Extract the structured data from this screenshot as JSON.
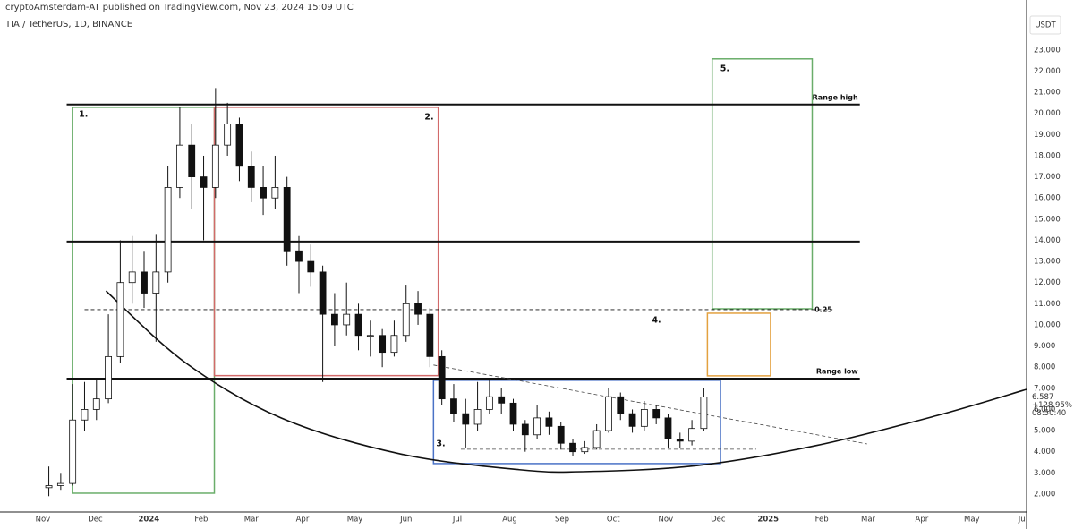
{
  "chart_data": {
    "type": "candlestick",
    "published": "cryptoAmsterdam-AT published on TradingView.com, Nov 23, 2024 15:09 UTC",
    "symbol": "TIA / TetherUS, 1D, BINANCE",
    "currency": "USDT",
    "price_label": "6.587",
    "change_label": "+128.95%",
    "countdown": "08:50:40",
    "color_up": "#ffffff",
    "color_down": "#111111",
    "xlim": [
      -3.6,
      82.6
    ],
    "xticks": [
      {
        "value": 0,
        "label": "Nov"
      },
      {
        "value": 4.4,
        "label": "Dec"
      },
      {
        "value": 8.9,
        "label": "2024"
      },
      {
        "value": 13.3,
        "label": "Feb"
      },
      {
        "value": 17.5,
        "label": "Mar"
      },
      {
        "value": 21.8,
        "label": "Apr"
      },
      {
        "value": 26.2,
        "label": "May"
      },
      {
        "value": 30.5,
        "label": "Jun"
      },
      {
        "value": 34.8,
        "label": "Jul"
      },
      {
        "value": 39.2,
        "label": "Aug"
      },
      {
        "value": 43.6,
        "label": "Sep"
      },
      {
        "value": 47.9,
        "label": "Oct"
      },
      {
        "value": 52.3,
        "label": "Nov"
      },
      {
        "value": 56.7,
        "label": "Dec"
      },
      {
        "value": 60.9,
        "label": "2025"
      },
      {
        "value": 65.4,
        "label": "Feb"
      },
      {
        "value": 69.3,
        "label": "Mar"
      },
      {
        "value": 73.8,
        "label": "Apr"
      },
      {
        "value": 78.0,
        "label": "May"
      },
      {
        "value": 82.2,
        "label": "Ju"
      }
    ],
    "ylim": [
      1.15,
      24.73
    ],
    "yticks": [
      {
        "value": 2,
        "label": "2.000"
      },
      {
        "value": 3,
        "label": "3.000"
      },
      {
        "value": 4,
        "label": "4.000"
      },
      {
        "value": 5,
        "label": "5.000"
      },
      {
        "value": 6,
        "label": "6.000"
      },
      {
        "value": 7,
        "label": "7.000"
      },
      {
        "value": 8,
        "label": "8.000"
      },
      {
        "value": 9,
        "label": "9.000"
      },
      {
        "value": 10,
        "label": "10.000"
      },
      {
        "value": 11,
        "label": "11.000"
      },
      {
        "value": 12,
        "label": "12.000"
      },
      {
        "value": 13,
        "label": "13.000"
      },
      {
        "value": 14,
        "label": "14.000"
      },
      {
        "value": 15,
        "label": "15.000"
      },
      {
        "value": 16,
        "label": "16.000"
      },
      {
        "value": 17,
        "label": "17.000"
      },
      {
        "value": 18,
        "label": "18.000"
      },
      {
        "value": 19,
        "label": "19.000"
      },
      {
        "value": 20,
        "label": "20.000"
      },
      {
        "value": 21,
        "label": "21.000"
      },
      {
        "value": 22,
        "label": "22.000"
      },
      {
        "value": 23,
        "label": "23.000"
      }
    ],
    "open": [
      2.3,
      2.4,
      2.5,
      5.5,
      6.0,
      6.5,
      8.5,
      12.0,
      12.5,
      11.5,
      12.5,
      16.5,
      18.5,
      17.0,
      16.5,
      18.5,
      19.5,
      17.5,
      16.5,
      16.0,
      16.5,
      13.5,
      13.0,
      12.5,
      10.5,
      10.0,
      10.5,
      9.5,
      9.5,
      8.7,
      9.5,
      11.0,
      10.5,
      8.5,
      6.5,
      5.8,
      5.3,
      6.0,
      6.6,
      6.3,
      5.3,
      4.8,
      5.6,
      5.2,
      4.4,
      4.0,
      4.2,
      5.0,
      6.6,
      5.8,
      5.2,
      6.0,
      5.6,
      4.6,
      4.5,
      5.1
    ],
    "high": [
      3.3,
      3.0,
      7.2,
      7.3,
      7.5,
      10.5,
      14.0,
      14.2,
      13.5,
      14.3,
      17.5,
      20.3,
      19.5,
      18.0,
      21.2,
      20.5,
      19.8,
      18.2,
      17.5,
      18.0,
      17.0,
      14.2,
      13.8,
      12.8,
      11.5,
      12.0,
      11.0,
      10.2,
      9.8,
      10.2,
      11.9,
      11.6,
      10.8,
      8.8,
      7.2,
      6.5,
      7.3,
      7.5,
      7.0,
      6.5,
      5.5,
      6.2,
      5.9,
      5.4,
      4.6,
      4.5,
      5.3,
      7.0,
      6.8,
      6.0,
      6.4,
      6.2,
      5.8,
      4.9,
      5.5,
      7.0
    ],
    "low": [
      1.9,
      2.2,
      2.4,
      5.0,
      5.5,
      6.3,
      8.2,
      11.0,
      10.8,
      9.2,
      12.0,
      16.0,
      15.5,
      14.0,
      16.0,
      18.0,
      16.8,
      15.8,
      15.2,
      15.5,
      12.8,
      11.5,
      11.8,
      7.3,
      9.0,
      9.5,
      8.8,
      8.5,
      8.0,
      8.5,
      9.2,
      10.0,
      8.0,
      6.2,
      5.4,
      4.2,
      5.0,
      5.8,
      5.8,
      5.0,
      4.0,
      4.6,
      4.8,
      4.1,
      3.8,
      3.9,
      4.1,
      4.9,
      5.5,
      4.9,
      5.0,
      5.3,
      4.2,
      4.2,
      4.3,
      5.0
    ],
    "close": [
      2.4,
      2.5,
      5.5,
      6.0,
      6.5,
      8.5,
      12.0,
      12.5,
      11.5,
      12.5,
      16.5,
      18.5,
      17.0,
      16.5,
      18.5,
      19.5,
      17.5,
      16.5,
      16.0,
      16.5,
      13.5,
      13.0,
      12.5,
      10.5,
      10.0,
      10.5,
      9.5,
      9.5,
      8.7,
      9.5,
      11.0,
      10.5,
      8.5,
      6.5,
      5.8,
      5.3,
      6.0,
      6.6,
      6.3,
      5.3,
      4.8,
      5.6,
      5.2,
      4.4,
      4.0,
      4.2,
      5.0,
      6.6,
      5.8,
      5.2,
      6.0,
      5.6,
      4.6,
      4.5,
      5.1,
      6.587
    ],
    "levels": [
      {
        "label": "Range high",
        "value": 20.42,
        "x": [
          2.0,
          68.6
        ],
        "style": "solid"
      },
      {
        "value": 13.94,
        "x": [
          2.0,
          68.6
        ],
        "style": "solid"
      },
      {
        "label": "0.25",
        "value": 10.72,
        "x": [
          3.5,
          66.3
        ],
        "style": "dashed"
      },
      {
        "label": "Range low",
        "value": 7.46,
        "x": [
          2.0,
          68.6
        ],
        "style": "solid"
      }
    ],
    "boxes": [
      {
        "label": "1.",
        "color": "#6aad6a",
        "x": [
          2.5,
          14.4
        ],
        "y": [
          2.04,
          20.29
        ]
      },
      {
        "label": "2.",
        "color": "#d26a6a",
        "x": [
          14.4,
          33.2
        ],
        "y": [
          7.6,
          20.29
        ]
      },
      {
        "label": "3.",
        "color": "#4a72c6",
        "x": [
          32.8,
          56.9
        ],
        "y": [
          3.44,
          7.38
        ]
      },
      {
        "label": "4.",
        "color": "#e3a13f",
        "x": [
          55.8,
          61.1
        ],
        "y": [
          7.59,
          10.55
        ]
      },
      {
        "label": "5.",
        "color": "#6aad6a",
        "x": [
          56.2,
          64.6
        ],
        "y": [
          10.76,
          22.58
        ]
      }
    ],
    "lines": [
      {
        "x": [
          32.8,
          69.2
        ],
        "y": [
          8.1,
          4.37
        ],
        "style": "dashed"
      },
      {
        "x": [
          35.1,
          59.9
        ],
        "y": [
          4.12,
          4.12
        ],
        "style": "dashed"
      }
    ],
    "curve": {
      "x": [
        5.3,
        12,
        20,
        30,
        40,
        45.6,
        55,
        65,
        75,
        82.6
      ],
      "y": [
        11.6,
        8.2,
        5.6,
        3.9,
        3.15,
        3.06,
        3.35,
        4.3,
        5.7,
        6.95
      ]
    }
  }
}
